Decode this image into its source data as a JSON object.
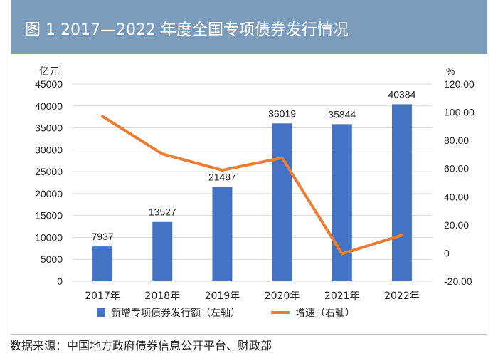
{
  "figure": {
    "title": "图 1   2017—2022 年度全国专项债券发行情况",
    "source": "数据来源：中国地方政府债券信息公开平台、财政部"
  },
  "chart_data": {
    "type": "bar",
    "title": "图 1   2017—2022 年度全国专项债券发行情况",
    "categories": [
      "2017年",
      "2018年",
      "2019年",
      "2020年",
      "2021年",
      "2022年"
    ],
    "left_axis": {
      "unit": "亿元",
      "range": [
        0,
        45000
      ],
      "ticks": [
        0,
        5000,
        10000,
        15000,
        20000,
        25000,
        30000,
        35000,
        40000,
        45000
      ],
      "tick_labels": [
        "0",
        "5000",
        "10000",
        "15000",
        "20000",
        "25000",
        "30000",
        "35000",
        "40000",
        "45000"
      ]
    },
    "right_axis": {
      "unit": "%",
      "range": [
        -20,
        120
      ],
      "ticks": [
        -20,
        0,
        20,
        40,
        60,
        80,
        100,
        120
      ],
      "tick_labels": [
        "-20.00",
        "0",
        "20.00",
        "40.00",
        "60.00",
        "80.00",
        "100.00",
        "120.00"
      ]
    },
    "series": [
      {
        "name": "新增专项债券发行额（左轴）",
        "type": "bar",
        "axis": "left",
        "values": [
          7937,
          13527,
          21487,
          36019,
          35844,
          40384
        ],
        "labels": [
          "7937",
          "13527",
          "21487",
          "36019",
          "35844",
          "40384"
        ],
        "color": "#4472c4"
      },
      {
        "name": "增速（右轴）",
        "type": "line",
        "axis": "right",
        "values": [
          97,
          70.4,
          58.8,
          67.6,
          -0.5,
          12.7
        ],
        "color": "#ed7d31"
      }
    ],
    "grid": true,
    "legend_position": "bottom"
  }
}
